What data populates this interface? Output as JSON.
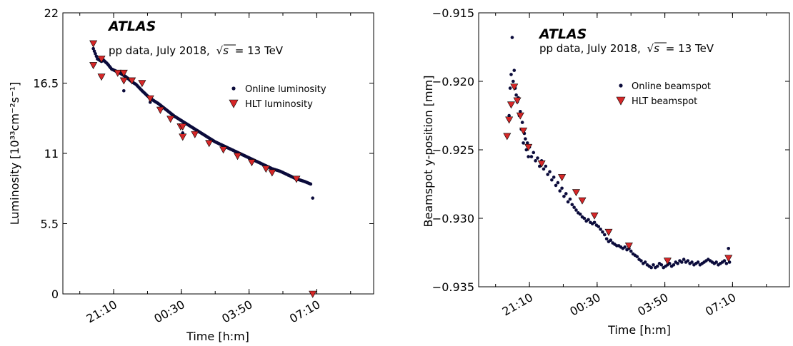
{
  "chart_data": [
    {
      "type": "scatter",
      "annotation_title": "ATLAS",
      "annotation_subtitle_prefix": "pp data, July 2018,",
      "annotation_sqrt": "√s",
      "annotation_subtitle_suffix": "= 13 TeV",
      "xlabel": "Time [h:m]",
      "ylabel": "Luminosity [10³³cm⁻²s⁻¹]",
      "x_unit": "hours after 21:10",
      "xlim": [
        -2.5,
        12.8
      ],
      "ylim": [
        0,
        22
      ],
      "xticks": [
        0,
        3.333,
        6.667,
        10.0
      ],
      "xtick_labels": [
        "21:10",
        "00:30",
        "03:50",
        "07:10"
      ],
      "yticks": [
        0,
        5.5,
        11,
        16.5,
        22
      ],
      "ytick_labels": [
        "0",
        "5.5",
        "11",
        "16.5",
        "22"
      ],
      "legend_position": "upper-right",
      "series": [
        {
          "name": "Online luminosity",
          "marker": "dot",
          "color": "#0b0b3b",
          "x": [
            -1.0,
            -0.8,
            -0.6,
            -0.5,
            -0.3,
            -0.1,
            0.3,
            0.6,
            0.9,
            1.1,
            1.4,
            1.8,
            2.2,
            2.6,
            3.0,
            3.3,
            3.7,
            4.0,
            4.3,
            4.6,
            5.0,
            5.4,
            5.8,
            6.2,
            6.6,
            7.0,
            7.4,
            7.8,
            8.2,
            8.6,
            9.0,
            9.4,
            9.7,
            9.8
          ],
          "y": [
            19.2,
            18.4,
            18.2,
            18.3,
            18.0,
            17.6,
            17.3,
            17.0,
            16.6,
            16.4,
            15.9,
            15.3,
            14.9,
            14.4,
            13.9,
            13.6,
            13.2,
            12.9,
            12.6,
            12.3,
            11.9,
            11.6,
            11.3,
            11.0,
            10.7,
            10.4,
            10.1,
            9.8,
            9.6,
            9.3,
            9.0,
            8.8,
            8.6,
            7.5
          ],
          "outliers_x": [
            0.5,
            1.8,
            3.4
          ],
          "outliers_y": [
            15.9,
            15.0,
            12.6
          ]
        },
        {
          "name": "HLT luminosity",
          "marker": "triangle-down",
          "color": "#d62728",
          "x": [
            -1.0,
            -1.0,
            -0.6,
            -0.6,
            0.2,
            0.5,
            0.5,
            0.9,
            1.4,
            1.8,
            2.3,
            2.8,
            3.3,
            3.4,
            3.4,
            4.0,
            4.7,
            5.4,
            6.1,
            6.8,
            7.5,
            7.8,
            9.0,
            9.8
          ],
          "y": [
            19.6,
            17.9,
            18.4,
            17.0,
            17.3,
            17.3,
            16.7,
            16.7,
            16.5,
            15.3,
            14.4,
            13.7,
            13.1,
            13.1,
            12.3,
            12.5,
            11.8,
            11.3,
            10.8,
            10.3,
            9.8,
            9.5,
            9.0,
            0.0
          ]
        }
      ]
    },
    {
      "type": "scatter",
      "annotation_title": "ATLAS",
      "annotation_subtitle_prefix": "pp data, July 2018,",
      "annotation_sqrt": "√s",
      "annotation_subtitle_suffix": "= 13 TeV",
      "xlabel": "Time [h:m]",
      "ylabel": "Beamspot y-position [mm]",
      "x_unit": "hours after 21:10",
      "xlim": [
        -2.5,
        12.8
      ],
      "ylim": [
        -0.935,
        -0.915
      ],
      "xticks": [
        0,
        3.333,
        6.667,
        10.0
      ],
      "xtick_labels": [
        "21:10",
        "00:30",
        "03:50",
        "07:10"
      ],
      "yticks": [
        -0.935,
        -0.93,
        -0.925,
        -0.92,
        -0.915
      ],
      "ytick_labels": [
        "−0.935",
        "−0.930",
        "−0.925",
        "−0.920",
        "−0.915"
      ],
      "legend_position": "upper-right",
      "series": [
        {
          "name": "Online beamspot",
          "marker": "dot",
          "color": "#0b0b3b",
          "x": [
            -1.1,
            -1.0,
            -0.95,
            -0.9,
            -0.85,
            -0.8,
            -0.75,
            -0.7,
            -0.65,
            -0.6,
            -0.55,
            -0.5,
            -0.45,
            -0.4,
            -0.35,
            -0.3,
            -0.25,
            -0.2,
            -0.15,
            -0.1,
            -0.05,
            0.0,
            0.1,
            0.2,
            0.3,
            0.4,
            0.5,
            0.6,
            0.7,
            0.8,
            0.9,
            1.0,
            1.1,
            1.2,
            1.3,
            1.4,
            1.5,
            1.6,
            1.7,
            1.8,
            1.9,
            2.0,
            2.1,
            2.2,
            2.3,
            2.4,
            2.5,
            2.6,
            2.7,
            2.8,
            2.9,
            3.0,
            3.1,
            3.2,
            3.3,
            3.4,
            3.5,
            3.6,
            3.7,
            3.8,
            3.9,
            4.0,
            4.1,
            4.2,
            4.3,
            4.4,
            4.5,
            4.6,
            4.7,
            4.8,
            4.9,
            5.0,
            5.1,
            5.2,
            5.3,
            5.4,
            5.5,
            5.6,
            5.7,
            5.8,
            5.9,
            6.0,
            6.1,
            6.2,
            6.3,
            6.4,
            6.5,
            6.6,
            6.7,
            6.8,
            6.9,
            7.0,
            7.1,
            7.2,
            7.3,
            7.4,
            7.5,
            7.6,
            7.7,
            7.8,
            7.9,
            8.0,
            8.1,
            8.2,
            8.3,
            8.4,
            8.5,
            8.6,
            8.7,
            8.8,
            8.9,
            9.0,
            9.1,
            9.2,
            9.3,
            9.4,
            9.5,
            9.6,
            9.7,
            9.8,
            9.85
          ],
          "y": [
            -0.924,
            -0.9225,
            -0.9205,
            -0.9195,
            -0.9168,
            -0.92,
            -0.9192,
            -0.9205,
            -0.921,
            -0.9215,
            -0.9212,
            -0.9225,
            -0.9222,
            -0.9235,
            -0.923,
            -0.9245,
            -0.9238,
            -0.9242,
            -0.925,
            -0.9245,
            -0.9255,
            -0.9248,
            -0.9255,
            -0.9252,
            -0.9258,
            -0.9256,
            -0.9262,
            -0.9258,
            -0.9264,
            -0.9262,
            -0.9268,
            -0.9266,
            -0.9272,
            -0.927,
            -0.9276,
            -0.9274,
            -0.928,
            -0.9278,
            -0.9284,
            -0.9282,
            -0.9288,
            -0.9286,
            -0.929,
            -0.9292,
            -0.9294,
            -0.9296,
            -0.9297,
            -0.9299,
            -0.93,
            -0.9302,
            -0.9301,
            -0.9303,
            -0.9304,
            -0.9303,
            -0.9305,
            -0.9306,
            -0.9308,
            -0.931,
            -0.9312,
            -0.9315,
            -0.9317,
            -0.9316,
            -0.9318,
            -0.9319,
            -0.932,
            -0.932,
            -0.9321,
            -0.9322,
            -0.9321,
            -0.9323,
            -0.9322,
            -0.9324,
            -0.9326,
            -0.9327,
            -0.9328,
            -0.933,
            -0.9331,
            -0.9333,
            -0.9332,
            -0.9334,
            -0.9335,
            -0.9336,
            -0.9334,
            -0.9336,
            -0.9335,
            -0.9333,
            -0.9334,
            -0.9336,
            -0.9335,
            -0.9334,
            -0.9333,
            -0.9335,
            -0.9334,
            -0.9332,
            -0.9333,
            -0.9331,
            -0.9332,
            -0.933,
            -0.9332,
            -0.9331,
            -0.9333,
            -0.9332,
            -0.9334,
            -0.9333,
            -0.9332,
            -0.9334,
            -0.9333,
            -0.9332,
            -0.9331,
            -0.933,
            -0.9331,
            -0.9332,
            -0.9333,
            -0.9332,
            -0.9334,
            -0.9333,
            -0.9332,
            -0.9331,
            -0.9333,
            -0.9322,
            -0.9332
          ]
        },
        {
          "name": "HLT beamspot",
          "marker": "triangle-down",
          "color": "#d62728",
          "x": [
            -1.1,
            -1.0,
            -0.9,
            -0.75,
            -0.6,
            -0.45,
            -0.3,
            -0.05,
            0.6,
            1.6,
            2.3,
            2.6,
            3.2,
            3.9,
            4.9,
            6.8,
            9.8
          ],
          "y": [
            -0.924,
            -0.9228,
            -0.9217,
            -0.9204,
            -0.9214,
            -0.9225,
            -0.9236,
            -0.9248,
            -0.926,
            -0.927,
            -0.9281,
            -0.9287,
            -0.9298,
            -0.931,
            -0.932,
            -0.9331,
            -0.9329
          ]
        }
      ]
    }
  ]
}
